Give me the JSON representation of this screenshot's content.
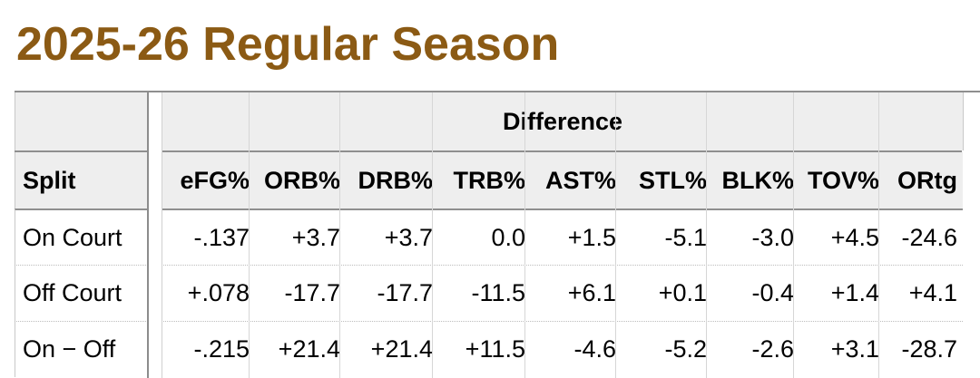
{
  "title": "2025-26 Regular Season",
  "table": {
    "over_header": "Difference",
    "columns": [
      "Split",
      "eFG%",
      "ORB%",
      "DRB%",
      "TRB%",
      "AST%",
      "STL%",
      "BLK%",
      "TOV%",
      "ORtg"
    ],
    "rows": [
      {
        "split": "On Court",
        "values": [
          "-.137",
          "+3.7",
          "+3.7",
          "0.0",
          "+1.5",
          "-5.1",
          "-3.0",
          "+4.5",
          "-24.6"
        ]
      },
      {
        "split": "Off Court",
        "values": [
          "+.078",
          "-17.7",
          "-17.7",
          "-11.5",
          "+6.1",
          "+0.1",
          "-0.4",
          "+1.4",
          "+4.1"
        ]
      },
      {
        "split": "On − Off",
        "values": [
          "-.215",
          "+21.4",
          "+21.4",
          "+11.5",
          "-4.6",
          "-5.2",
          "-2.6",
          "+3.1",
          "-28.7"
        ]
      }
    ]
  }
}
